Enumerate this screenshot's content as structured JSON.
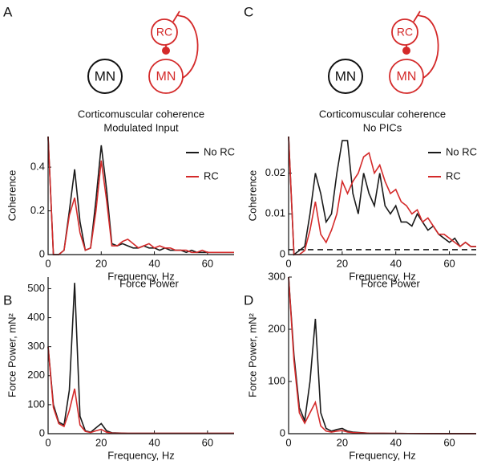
{
  "chart_data": [
    {
      "type": "line",
      "panel": "A",
      "title": "Corticomuscular coherence",
      "subtitle": "Modulated Input",
      "diagram": {
        "left": "MN",
        "right_top": "RC",
        "right_bottom": "MN"
      },
      "xlabel": "Frequency, Hz",
      "ylabel": "Coherence",
      "x": [
        0,
        2,
        4,
        6,
        8,
        10,
        12,
        14,
        16,
        18,
        20,
        22,
        24,
        26,
        28,
        30,
        32,
        34,
        36,
        38,
        40,
        42,
        44,
        46,
        48,
        50,
        52,
        54,
        56,
        58,
        60,
        62,
        64,
        66,
        68,
        70
      ],
      "xlim": [
        0,
        70
      ],
      "xticks": [
        0,
        20,
        40,
        60
      ],
      "ylim": [
        0,
        0.54
      ],
      "yticks": [
        0,
        0.2,
        0.4
      ],
      "series": [
        {
          "name": "No RC",
          "color": "#1a1a1a",
          "values": [
            0.54,
            0,
            0,
            0.02,
            0.2,
            0.39,
            0.15,
            0.02,
            0.03,
            0.25,
            0.5,
            0.3,
            0.05,
            0.04,
            0.05,
            0.04,
            0.03,
            0.03,
            0.04,
            0.03,
            0.03,
            0.02,
            0.03,
            0.02,
            0.02,
            0.02,
            0.01,
            0.02,
            0.01,
            0.01,
            0.01,
            0.01,
            0.01,
            0.01,
            0.01,
            0.01
          ]
        },
        {
          "name": "RC",
          "color": "#d42a2a",
          "values": [
            0.54,
            0,
            0,
            0.02,
            0.18,
            0.26,
            0.1,
            0.02,
            0.03,
            0.2,
            0.43,
            0.25,
            0.04,
            0.04,
            0.06,
            0.07,
            0.05,
            0.03,
            0.04,
            0.05,
            0.03,
            0.04,
            0.03,
            0.03,
            0.02,
            0.02,
            0.02,
            0.01,
            0.01,
            0.02,
            0.01,
            0.01,
            0.01,
            0.01,
            0.01,
            0.01
          ]
        }
      ]
    },
    {
      "type": "line",
      "panel": "B",
      "title": "Force Power",
      "xlabel": "Frequency, Hz",
      "ylabel": "Force Power, mN²",
      "x": [
        0,
        2,
        4,
        6,
        8,
        10,
        12,
        14,
        16,
        18,
        20,
        22,
        24,
        30,
        40,
        50,
        60,
        70
      ],
      "xlim": [
        0,
        70
      ],
      "xticks": [
        0,
        20,
        40,
        60
      ],
      "ylim": [
        0,
        540
      ],
      "yticks": [
        0,
        100,
        200,
        300,
        400,
        500
      ],
      "series": [
        {
          "name": "No RC",
          "color": "#1a1a1a",
          "values": [
            300,
            100,
            40,
            30,
            150,
            520,
            60,
            10,
            5,
            20,
            35,
            10,
            3,
            1,
            1,
            1,
            1,
            1
          ]
        },
        {
          "name": "RC",
          "color": "#d42a2a",
          "values": [
            300,
            90,
            35,
            25,
            80,
            155,
            30,
            8,
            4,
            10,
            15,
            5,
            2,
            1,
            1,
            1,
            1,
            1
          ]
        }
      ]
    },
    {
      "type": "line",
      "panel": "C",
      "title": "Corticomuscular coherence",
      "subtitle": "No PICs",
      "diagram": {
        "left": "MN",
        "right_top": "RC",
        "right_bottom": "MN"
      },
      "xlabel": "Frequency, Hz",
      "ylabel": "Coherence",
      "x": [
        0,
        2,
        4,
        6,
        8,
        10,
        12,
        14,
        16,
        18,
        20,
        22,
        24,
        26,
        28,
        30,
        32,
        34,
        36,
        38,
        40,
        42,
        44,
        46,
        48,
        50,
        52,
        54,
        56,
        58,
        60,
        62,
        64,
        66,
        68,
        70
      ],
      "xlim": [
        0,
        70
      ],
      "xticks": [
        0,
        20,
        40,
        60
      ],
      "ylim": [
        0,
        0.029
      ],
      "yticks": [
        0,
        0.01,
        0.02
      ],
      "reference_line": 0.0012,
      "series": [
        {
          "name": "No RC",
          "color": "#1a1a1a",
          "values": [
            0.029,
            0,
            0.001,
            0.002,
            0.01,
            0.02,
            0.015,
            0.008,
            0.01,
            0.02,
            0.028,
            0.028,
            0.015,
            0.01,
            0.02,
            0.015,
            0.012,
            0.02,
            0.012,
            0.01,
            0.012,
            0.008,
            0.008,
            0.007,
            0.01,
            0.008,
            0.006,
            0.007,
            0.005,
            0.004,
            0.003,
            0.004,
            0.002,
            0.003,
            0.002,
            0.002
          ]
        },
        {
          "name": "RC",
          "color": "#d42a2a",
          "values": [
            0.029,
            0,
            0,
            0.001,
            0.006,
            0.013,
            0.005,
            0.003,
            0.006,
            0.01,
            0.018,
            0.015,
            0.018,
            0.02,
            0.024,
            0.025,
            0.02,
            0.022,
            0.018,
            0.015,
            0.016,
            0.013,
            0.012,
            0.01,
            0.011,
            0.008,
            0.009,
            0.007,
            0.005,
            0.005,
            0.004,
            0.003,
            0.002,
            0.003,
            0.002,
            0.002
          ]
        }
      ]
    },
    {
      "type": "line",
      "panel": "D",
      "title": "Force Power",
      "xlabel": "Frequency, Hz",
      "ylabel": "Force Power, mN²",
      "x": [
        0,
        2,
        4,
        6,
        8,
        10,
        12,
        14,
        16,
        18,
        20,
        22,
        24,
        30,
        40,
        50,
        60,
        70
      ],
      "xlim": [
        0,
        70
      ],
      "xticks": [
        0,
        20,
        40,
        60
      ],
      "ylim": [
        0,
        300
      ],
      "yticks": [
        0,
        100,
        200,
        300
      ],
      "series": [
        {
          "name": "No RC",
          "color": "#1a1a1a",
          "values": [
            300,
            150,
            50,
            25,
            100,
            220,
            40,
            10,
            5,
            8,
            10,
            5,
            3,
            1,
            0.5,
            0.3,
            0.2,
            0.2
          ]
        },
        {
          "name": "RC",
          "color": "#d42a2a",
          "values": [
            300,
            140,
            40,
            20,
            40,
            60,
            15,
            5,
            3,
            5,
            6,
            3,
            2,
            1,
            0.5,
            0.3,
            0.2,
            0.2
          ]
        }
      ]
    }
  ]
}
